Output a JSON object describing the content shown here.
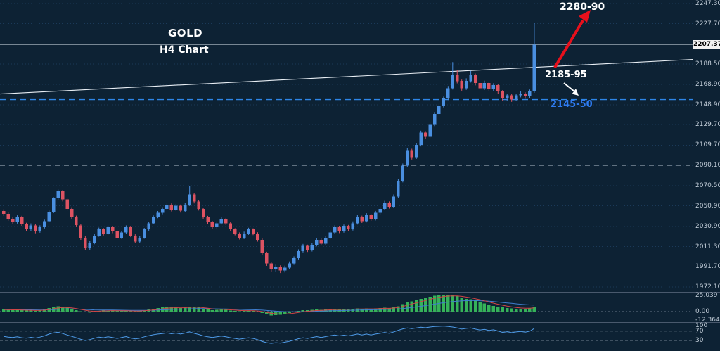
{
  "titles": {
    "symbol": "GOLD",
    "timeframe": "H4 Chart"
  },
  "annotations": {
    "target": "2280-90",
    "resistance": "2185-95",
    "support": "2145-50"
  },
  "price_axis": {
    "current_price": "2207.37",
    "labels": [
      "2247.30",
      "2227.70",
      "2188.50",
      "2168.90",
      "2148.90",
      "2129.70",
      "2109.70",
      "2090.10",
      "2070.50",
      "2050.90",
      "2030.90",
      "2011.30",
      "1991.70",
      "1972.10"
    ]
  },
  "macd_axis": {
    "labels": [
      "25.039",
      "0.00",
      "-12.364"
    ]
  },
  "osc_axis": {
    "labels": [
      "100",
      "70",
      "30"
    ]
  },
  "colors": {
    "background": "#0d2234",
    "bull_candle": "#4a8fe0",
    "bear_candle": "#dd5362",
    "trendline": "#e8eef4",
    "support_dashed": "#2e86e8",
    "mid_dashed": "#93a1ad",
    "current_price_line": "#ccd6df",
    "macd_histogram": "#35b259",
    "macd_signal": "#d04545",
    "macd_main": "#3f7fd0",
    "oscillator_line": "#4f9be8",
    "arrow_red": "#e8101c",
    "arrow_white": "#ffffff",
    "axis_text": "#c2cdd8",
    "support_label_blue": "#2e7bf0"
  },
  "chart_data": {
    "type": "candlestick",
    "symbol": "GOLD",
    "timeframe": "H4",
    "ylim": [
      1967.3,
      2250.7
    ],
    "current_price": 2207.37,
    "gridline_prices": [
      2247.3,
      2227.7,
      2188.5,
      2168.9,
      2148.9,
      2129.7,
      2109.7,
      2090.1,
      2070.5,
      2050.9,
      2030.9,
      2011.3,
      1991.7,
      1972.1
    ],
    "levels": {
      "target_zone": [
        2280,
        2290
      ],
      "resistance_zone": [
        2185,
        2195
      ],
      "support_zone": [
        2145,
        2150
      ],
      "support_line": 2154,
      "mid_line": 2090.1
    },
    "trendline": {
      "price_at_left": 2159.5,
      "price_at_right": 2193
    },
    "candles_ohlc": [
      [
        2046,
        2047.5,
        2041.2,
        2043
      ],
      [
        2043,
        2044.6,
        2036.4,
        2038
      ],
      [
        2038,
        2039.8,
        2032.9,
        2035
      ],
      [
        2035,
        2041.7,
        2033.6,
        2040
      ],
      [
        2040,
        2041.2,
        2031.5,
        2033
      ],
      [
        2033,
        2034.4,
        2026.1,
        2028
      ],
      [
        2028,
        2033.8,
        2026.5,
        2032
      ],
      [
        2032,
        2033.1,
        2024.2,
        2026
      ],
      [
        2026,
        2031.9,
        2024.8,
        2030
      ],
      [
        2030,
        2037.4,
        2028.9,
        2036
      ],
      [
        2036,
        2046.3,
        2035.1,
        2045
      ],
      [
        2045,
        2059.2,
        2043.8,
        2058
      ],
      [
        2058,
        2066.8,
        2056.4,
        2065
      ],
      [
        2065,
        2066.2,
        2055.1,
        2057
      ],
      [
        2057,
        2058.3,
        2046.2,
        2048
      ],
      [
        2048,
        2049.5,
        2038.1,
        2040
      ],
      [
        2040,
        2041.3,
        2030.2,
        2032
      ],
      [
        2032,
        2033,
        2017.8,
        2020
      ],
      [
        2020,
        2021.4,
        2007.9,
        2010
      ],
      [
        2010,
        2016.8,
        2008.3,
        2015
      ],
      [
        2015,
        2023.5,
        2013.6,
        2022
      ],
      [
        2022,
        2029.7,
        2020.9,
        2028
      ],
      [
        2028,
        2029.3,
        2022.1,
        2024
      ],
      [
        2024,
        2031.6,
        2022.7,
        2030
      ],
      [
        2030,
        2031.2,
        2024.3,
        2026
      ],
      [
        2026,
        2027.1,
        2018.4,
        2020
      ],
      [
        2020,
        2026.6,
        2018.8,
        2025
      ],
      [
        2025,
        2031.8,
        2023.9,
        2030
      ],
      [
        2030,
        2031.1,
        2020.5,
        2022
      ],
      [
        2022,
        2023.2,
        2014.4,
        2016
      ],
      [
        2016,
        2021.9,
        2014.7,
        2020
      ],
      [
        2020,
        2029.4,
        2018.9,
        2028
      ],
      [
        2028,
        2035.6,
        2026.8,
        2034
      ],
      [
        2034,
        2041.5,
        2032.9,
        2040
      ],
      [
        2040,
        2045.8,
        2038.9,
        2044
      ],
      [
        2044,
        2049.6,
        2042.7,
        2048
      ],
      [
        2048,
        2053.9,
        2046.8,
        2052
      ],
      [
        2052,
        2053.2,
        2045.4,
        2047
      ],
      [
        2047,
        2052.7,
        2045.9,
        2051
      ],
      [
        2051,
        2052.1,
        2044.3,
        2046
      ],
      [
        2046,
        2053.6,
        2044.9,
        2052
      ],
      [
        2052,
        2069.8,
        2050.7,
        2062
      ],
      [
        2062,
        2063.4,
        2053.2,
        2055
      ],
      [
        2055,
        2056.1,
        2046.3,
        2048
      ],
      [
        2048,
        2049.2,
        2038.4,
        2040
      ],
      [
        2040,
        2041.1,
        2033.2,
        2035
      ],
      [
        2035,
        2036.3,
        2028.1,
        2030
      ],
      [
        2030,
        2035.7,
        2028.6,
        2034
      ],
      [
        2034,
        2039.9,
        2032.8,
        2038
      ],
      [
        2038,
        2039.1,
        2032.2,
        2034
      ],
      [
        2034,
        2035.3,
        2026.4,
        2028
      ],
      [
        2028,
        2029.2,
        2022.3,
        2024
      ],
      [
        2024,
        2025.1,
        2018.2,
        2020
      ],
      [
        2020,
        2025.8,
        2018.6,
        2024
      ],
      [
        2024,
        2029.6,
        2022.7,
        2028
      ],
      [
        2028,
        2029,
        2022.4,
        2024
      ],
      [
        2024,
        2025.2,
        2016.1,
        2018
      ],
      [
        2018,
        2019.1,
        2002.8,
        2005
      ],
      [
        2005,
        2006.3,
        1992.6,
        1995
      ],
      [
        1995,
        1996.2,
        1986.4,
        1989
      ],
      [
        1989,
        1993.7,
        1987.1,
        1992
      ],
      [
        1992,
        1993.1,
        1985.7,
        1988
      ],
      [
        1988,
        1992.8,
        1986.2,
        1991
      ],
      [
        1991,
        1996.9,
        1989.4,
        1995
      ],
      [
        1995,
        2001.8,
        1993.6,
        2000
      ],
      [
        2000,
        2008.6,
        1998.8,
        2007
      ],
      [
        2007,
        2013.9,
        2005.7,
        2012
      ],
      [
        2012,
        2013.2,
        2006.1,
        2008
      ],
      [
        2008,
        2014.7,
        2006.6,
        2013
      ],
      [
        2013,
        2019.8,
        2011.5,
        2018
      ],
      [
        2018,
        2019.2,
        2012.3,
        2014
      ],
      [
        2014,
        2021.7,
        2012.8,
        2020
      ],
      [
        2020,
        2026.9,
        2018.7,
        2025
      ],
      [
        2025,
        2031.8,
        2023.6,
        2030
      ],
      [
        2030,
        2031.2,
        2024.4,
        2026
      ],
      [
        2026,
        2032.7,
        2024.8,
        2031
      ],
      [
        2031,
        2032.3,
        2026.2,
        2028
      ],
      [
        2028,
        2035.8,
        2026.9,
        2034
      ],
      [
        2034,
        2041.9,
        2032.7,
        2040
      ],
      [
        2040,
        2041.3,
        2034.2,
        2036
      ],
      [
        2036,
        2043.7,
        2034.8,
        2042
      ],
      [
        2042,
        2043.1,
        2036.3,
        2038
      ],
      [
        2038,
        2045.9,
        2036.7,
        2044
      ],
      [
        2044,
        2049.8,
        2042.6,
        2048
      ],
      [
        2048,
        2055.7,
        2046.9,
        2054
      ],
      [
        2054,
        2055.1,
        2048.2,
        2050
      ],
      [
        2050,
        2061.9,
        2048.8,
        2060
      ],
      [
        2060,
        2076.8,
        2058.7,
        2075
      ],
      [
        2075,
        2091.9,
        2073.6,
        2090
      ],
      [
        2090,
        2106.8,
        2088.4,
        2105
      ],
      [
        2105,
        2106.3,
        2095.8,
        2098
      ],
      [
        2098,
        2111.9,
        2096.4,
        2110
      ],
      [
        2110,
        2123.8,
        2108.6,
        2122
      ],
      [
        2122,
        2123.4,
        2115.9,
        2118
      ],
      [
        2118,
        2131.8,
        2116.5,
        2130
      ],
      [
        2130,
        2141.9,
        2128.3,
        2140
      ],
      [
        2140,
        2149.8,
        2138.6,
        2148
      ],
      [
        2148,
        2156.9,
        2146.4,
        2155
      ],
      [
        2155,
        2167.2,
        2153.6,
        2165
      ],
      [
        2165,
        2190.4,
        2163.8,
        2178
      ],
      [
        2178,
        2182.6,
        2169.8,
        2172
      ],
      [
        2172,
        2173.4,
        2162.7,
        2165
      ],
      [
        2165,
        2174.6,
        2163.4,
        2172
      ],
      [
        2172,
        2181.9,
        2170.5,
        2178
      ],
      [
        2178,
        2179.3,
        2167.8,
        2170
      ],
      [
        2170,
        2171.2,
        2162.6,
        2165
      ],
      [
        2165,
        2172.4,
        2163.3,
        2170
      ],
      [
        2170,
        2171.1,
        2161.9,
        2164
      ],
      [
        2164,
        2169.9,
        2162.2,
        2168
      ],
      [
        2168,
        2169.1,
        2159.8,
        2162
      ],
      [
        2162,
        2163.2,
        2152.6,
        2155
      ],
      [
        2155,
        2159.9,
        2153.1,
        2158
      ],
      [
        2158,
        2159.2,
        2151.8,
        2154
      ],
      [
        2154,
        2159.8,
        2152.4,
        2158
      ],
      [
        2158,
        2161.9,
        2156.2,
        2160
      ],
      [
        2160,
        2161.1,
        2154.8,
        2157
      ],
      [
        2157,
        2163.8,
        2155.3,
        2162
      ],
      [
        2162,
        2228.3,
        2160.6,
        2207.4
      ]
    ],
    "macd": {
      "ylim": [
        -12.364,
        25.039
      ],
      "histogram": [
        3,
        2.5,
        2,
        2.5,
        2,
        1.5,
        1.5,
        1,
        2,
        3,
        5,
        7,
        8,
        7.5,
        6,
        4,
        2,
        0.5,
        -1,
        -1.5,
        -0.5,
        1,
        2,
        1.5,
        2,
        1,
        1.5,
        1,
        0.5,
        0.5,
        1,
        2,
        3,
        4,
        5,
        6,
        7,
        6.5,
        6,
        5.5,
        6,
        7.5,
        7,
        6,
        4.5,
        3,
        2,
        2.5,
        3,
        2.5,
        1.5,
        1,
        0.5,
        1,
        1.5,
        1,
        0,
        -2,
        -4,
        -5.5,
        -5,
        -4.5,
        -3.5,
        -2,
        -0.5,
        1,
        2,
        2,
        2.5,
        3,
        2.5,
        3,
        3.5,
        4,
        3.5,
        4,
        3.5,
        4,
        4.5,
        4,
        4.5,
        4,
        4.5,
        5,
        5.5,
        5,
        6,
        8,
        11,
        14,
        15,
        17,
        19,
        20,
        22,
        23.5,
        24.5,
        25,
        24.5,
        24,
        23,
        21,
        19,
        18,
        16,
        14,
        12,
        10,
        8.5,
        7,
        6,
        5,
        4.5,
        4,
        3.5,
        4,
        5,
        7
      ]
    },
    "oscillator": {
      "ylim": [
        0,
        100
      ],
      "levels": [
        70,
        30
      ],
      "values": [
        48,
        45,
        43,
        46,
        42,
        40,
        44,
        41,
        45,
        50,
        58,
        63,
        66,
        60,
        54,
        48,
        42,
        35,
        30,
        34,
        40,
        45,
        42,
        46,
        43,
        39,
        43,
        47,
        41,
        37,
        40,
        46,
        51,
        55,
        58,
        60,
        63,
        59,
        62,
        58,
        62,
        67,
        61,
        56,
        50,
        46,
        43,
        46,
        49,
        46,
        42,
        39,
        36,
        39,
        42,
        39,
        34,
        26,
        21,
        18,
        21,
        19,
        23,
        27,
        32,
        38,
        42,
        39,
        43,
        47,
        43,
        47,
        51,
        54,
        50,
        53,
        50,
        54,
        58,
        54,
        58,
        54,
        58,
        61,
        65,
        61,
        67,
        74,
        80,
        84,
        81,
        84,
        87,
        85,
        88,
        90,
        91,
        92,
        90,
        88,
        84,
        79,
        82,
        84,
        79,
        75,
        78,
        73,
        76,
        71,
        65,
        68,
        64,
        67,
        69,
        66,
        70,
        82
      ]
    }
  }
}
